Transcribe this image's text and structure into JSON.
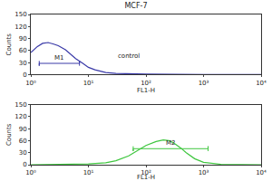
{
  "title": "MCF-7",
  "chart_data": [
    {
      "type": "line",
      "color": "#3a3aa8",
      "log": "x",
      "x_label": "FL1-H",
      "y_label": "Counts",
      "x": [
        1,
        1.3,
        1.6,
        2,
        2.5,
        3,
        4,
        5,
        6,
        8,
        10,
        13,
        16,
        20,
        30,
        50,
        100,
        1000,
        10000
      ],
      "values": [
        55,
        70,
        78,
        80,
        76,
        72,
        62,
        50,
        40,
        28,
        18,
        12,
        8,
        5,
        3,
        2,
        1,
        0,
        0
      ],
      "xlim": [
        1,
        10000
      ],
      "xticks": [
        {
          "value": 1,
          "label": "10⁰"
        },
        {
          "value": 10,
          "label": "10¹"
        },
        {
          "value": 100,
          "label": "10²"
        },
        {
          "value": 1000,
          "label": "10³"
        },
        {
          "value": 10000,
          "label": "10⁴"
        }
      ],
      "ylim": [
        0,
        150
      ],
      "yticks": [
        0,
        30,
        60,
        90,
        120,
        150
      ],
      "gates": [
        {
          "label": "M1",
          "x": [
            1.4,
            7
          ],
          "y": 28
        }
      ],
      "annotations": [
        {
          "text": "control",
          "x": 30,
          "y": 45
        }
      ]
    },
    {
      "type": "line",
      "color": "#3fc63f",
      "log": "x",
      "x_label": "FL1-H",
      "y_label": "Counts",
      "x": [
        1,
        10,
        20,
        30,
        50,
        70,
        100,
        150,
        200,
        250,
        300,
        400,
        500,
        700,
        1000,
        2000,
        10000
      ],
      "values": [
        0,
        2,
        5,
        10,
        22,
        35,
        48,
        58,
        62,
        60,
        55,
        42,
        30,
        15,
        6,
        1,
        0
      ],
      "xlim": [
        1,
        10000
      ],
      "xticks": [
        {
          "value": 1,
          "label": "10⁰"
        },
        {
          "value": 10,
          "label": "10¹"
        },
        {
          "value": 100,
          "label": "10²"
        },
        {
          "value": 1000,
          "label": "10³"
        },
        {
          "value": 10000,
          "label": "10⁴"
        }
      ],
      "ylim": [
        0,
        150
      ],
      "yticks": [
        0,
        30,
        60,
        90,
        120,
        150
      ],
      "gates": [
        {
          "label": "M2",
          "x": [
            60,
            1200
          ],
          "y": 40
        }
      ]
    }
  ]
}
